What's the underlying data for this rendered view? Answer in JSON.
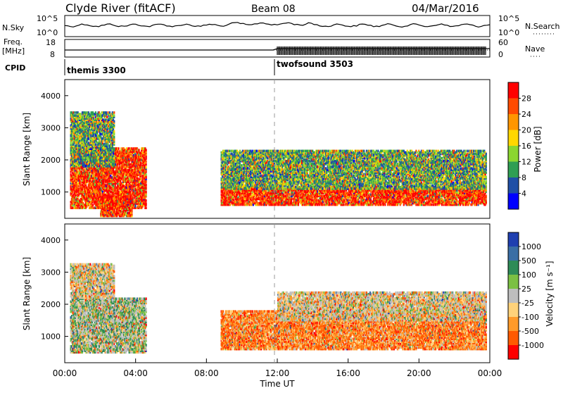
{
  "header": {
    "station": "Clyde River (fitACF)",
    "beam": "Beam 08",
    "date": "04/Mar/2016"
  },
  "noise_panel": {
    "left_label": "N.Sky",
    "right_label": "N.Search",
    "left_ticks": [
      "10^5",
      "10^0"
    ],
    "right_ticks": [
      "10^5",
      "10^0"
    ]
  },
  "freq_panel": {
    "left_label_1": "Freq.",
    "left_label_2": "[MHz]",
    "right_label": "Nave",
    "left_ticks": [
      "18",
      "8"
    ],
    "right_ticks": [
      "60",
      "0"
    ]
  },
  "cpid": {
    "label": "CPID",
    "segments": [
      {
        "name": "themis 3300",
        "start_hour": 0
      },
      {
        "name": "twofsound 3503",
        "start_hour": 12
      }
    ]
  },
  "chart_data": [
    {
      "type": "heatmap",
      "title": "",
      "ylabel": "Slant Range [km]",
      "ylim": [
        180,
        4500
      ],
      "yticks": [
        "4000",
        "3000",
        "2000",
        "1000"
      ],
      "xlim": [
        0,
        24
      ],
      "colorbar": {
        "label": "Power [dB]",
        "ticks": [
          "28",
          "24",
          "20",
          "16",
          "12",
          "8",
          "4"
        ],
        "colors": [
          "#ff0000",
          "#ff4b00",
          "#ff9600",
          "#ffd700",
          "#8bd630",
          "#2f9e53",
          "#1f4fa6",
          "#0000ff"
        ]
      },
      "echo_regions": [
        {
          "t_start": 0.3,
          "t_end": 4.6,
          "r_min": 500,
          "r_max": 2400,
          "level": "high"
        },
        {
          "t_start": 0.3,
          "t_end": 2.8,
          "r_min": 1800,
          "r_max": 3500,
          "level": "medium"
        },
        {
          "t_start": 2.0,
          "t_end": 3.8,
          "r_min": 250,
          "r_max": 900,
          "level": "high"
        },
        {
          "t_start": 8.8,
          "t_end": 23.8,
          "r_min": 600,
          "r_max": 1200,
          "level": "high"
        },
        {
          "t_start": 8.8,
          "t_end": 23.8,
          "r_min": 1100,
          "r_max": 2300,
          "level": "medium"
        }
      ]
    },
    {
      "type": "heatmap",
      "title": "",
      "ylabel": "Slant Range [km]",
      "xlabel": "Time UT",
      "ylim": [
        180,
        4500
      ],
      "yticks": [
        "4000",
        "3000",
        "2000",
        "1000"
      ],
      "xlim": [
        0,
        24
      ],
      "xticks": [
        "00:00",
        "04:00",
        "08:00",
        "12:00",
        "16:00",
        "20:00",
        "00:00"
      ],
      "colorbar": {
        "label": "Velocity [m s⁻¹]",
        "ticks": [
          "1000",
          "500",
          "100",
          "25",
          "-25",
          "-100",
          "-500",
          "-1000"
        ],
        "colors": [
          "#1f3fb0",
          "#3a6ea5",
          "#2e8b57",
          "#7bc043",
          "#bebebe",
          "#ffd27a",
          "#ff9a2a",
          "#ff5a00",
          "#ff0000"
        ]
      },
      "echo_regions": [
        {
          "t_start": 0.3,
          "t_end": 4.6,
          "r_min": 500,
          "r_max": 2200,
          "level": "low"
        },
        {
          "t_start": 0.3,
          "t_end": 2.8,
          "r_min": 2200,
          "r_max": 3300,
          "level": "mixed"
        },
        {
          "t_start": 8.8,
          "t_end": 23.8,
          "r_min": 600,
          "r_max": 1800,
          "level": "negative"
        },
        {
          "t_start": 12.0,
          "t_end": 23.8,
          "r_min": 1500,
          "r_max": 2400,
          "level": "mixed"
        }
      ]
    }
  ]
}
